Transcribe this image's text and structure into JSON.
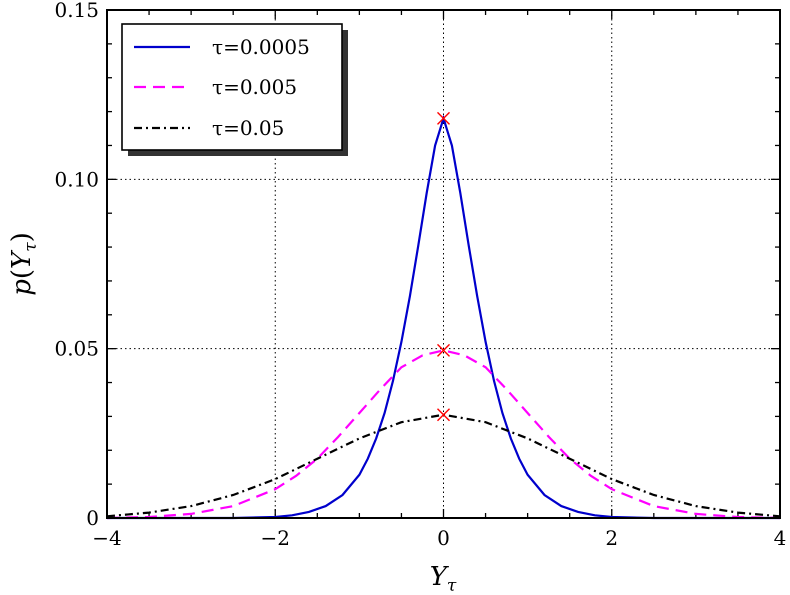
{
  "chart_data": {
    "type": "line",
    "xlabel": "Y_τ",
    "xlabel_main": "Y",
    "xlabel_sub": "τ",
    "ylabel": "p(Y_τ)",
    "ylabel_func": "p",
    "ylabel_open": "(",
    "ylabel_var": "Y",
    "ylabel_sub": "τ",
    "ylabel_close": ")",
    "xlim": [
      -4,
      4
    ],
    "ylim": [
      0,
      0.15
    ],
    "xticks": [
      -4,
      -2,
      0,
      2,
      4
    ],
    "xtick_labels": [
      "−4",
      "−2",
      "0",
      "2",
      "4"
    ],
    "yticks": [
      0,
      0.05,
      0.1,
      0.15
    ],
    "ytick_labels": [
      "0",
      "0.05",
      "0.10",
      "0.15"
    ],
    "grid": true,
    "legend_position": "top-left",
    "series": [
      {
        "name": "τ=0.0005",
        "color": "#0000cc",
        "style": "solid",
        "x": [
          -4.0,
          -3.5,
          -3.0,
          -2.5,
          -2.0,
          -1.8,
          -1.6,
          -1.4,
          -1.2,
          -1.0,
          -0.9,
          -0.8,
          -0.7,
          -0.6,
          -0.5,
          -0.4,
          -0.3,
          -0.2,
          -0.1,
          0.0,
          0.1,
          0.2,
          0.3,
          0.4,
          0.5,
          0.6,
          0.7,
          0.8,
          0.9,
          1.0,
          1.2,
          1.4,
          1.6,
          1.8,
          2.0,
          2.5,
          3.0,
          3.5,
          4.0
        ],
        "y": [
          0.0,
          0.0,
          0.0,
          0.0,
          0.0003,
          0.0008,
          0.0018,
          0.0035,
          0.0068,
          0.0128,
          0.0175,
          0.0235,
          0.031,
          0.0405,
          0.052,
          0.0655,
          0.0805,
          0.096,
          0.11,
          0.118,
          0.11,
          0.096,
          0.0805,
          0.0655,
          0.052,
          0.0405,
          0.031,
          0.0235,
          0.0175,
          0.0128,
          0.0068,
          0.0035,
          0.0018,
          0.0008,
          0.0003,
          0.0,
          0.0,
          0.0,
          0.0
        ]
      },
      {
        "name": "τ=0.005",
        "color": "#ff00ff",
        "style": "dashed",
        "x": [
          -4.0,
          -3.5,
          -3.0,
          -2.5,
          -2.0,
          -1.75,
          -1.5,
          -1.25,
          -1.0,
          -0.75,
          -0.5,
          -0.25,
          0.0,
          0.25,
          0.5,
          0.75,
          1.0,
          1.25,
          1.5,
          1.75,
          2.0,
          2.5,
          3.0,
          3.5,
          4.0
        ],
        "y": [
          0.0,
          0.0003,
          0.0012,
          0.0035,
          0.0085,
          0.0125,
          0.0175,
          0.024,
          0.031,
          0.038,
          0.0445,
          0.048,
          0.0495,
          0.048,
          0.0445,
          0.038,
          0.031,
          0.024,
          0.0175,
          0.0125,
          0.0085,
          0.0035,
          0.0012,
          0.0003,
          0.0
        ]
      },
      {
        "name": "τ=0.05",
        "color": "#000000",
        "style": "dashdot",
        "x": [
          -4.0,
          -3.5,
          -3.0,
          -2.5,
          -2.0,
          -1.5,
          -1.0,
          -0.5,
          0.0,
          0.5,
          1.0,
          1.5,
          2.0,
          2.5,
          3.0,
          3.5,
          4.0
        ],
        "y": [
          0.0005,
          0.0016,
          0.0035,
          0.0068,
          0.0115,
          0.0175,
          0.0235,
          0.0283,
          0.0305,
          0.0283,
          0.0235,
          0.0175,
          0.0115,
          0.0068,
          0.0035,
          0.0016,
          0.0005
        ]
      }
    ],
    "peak_markers": [
      {
        "x": 0.0,
        "y": 0.118
      },
      {
        "x": 0.0,
        "y": 0.0495
      },
      {
        "x": 0.0,
        "y": 0.0305
      }
    ],
    "peak_marker_color": "#ff0000"
  }
}
